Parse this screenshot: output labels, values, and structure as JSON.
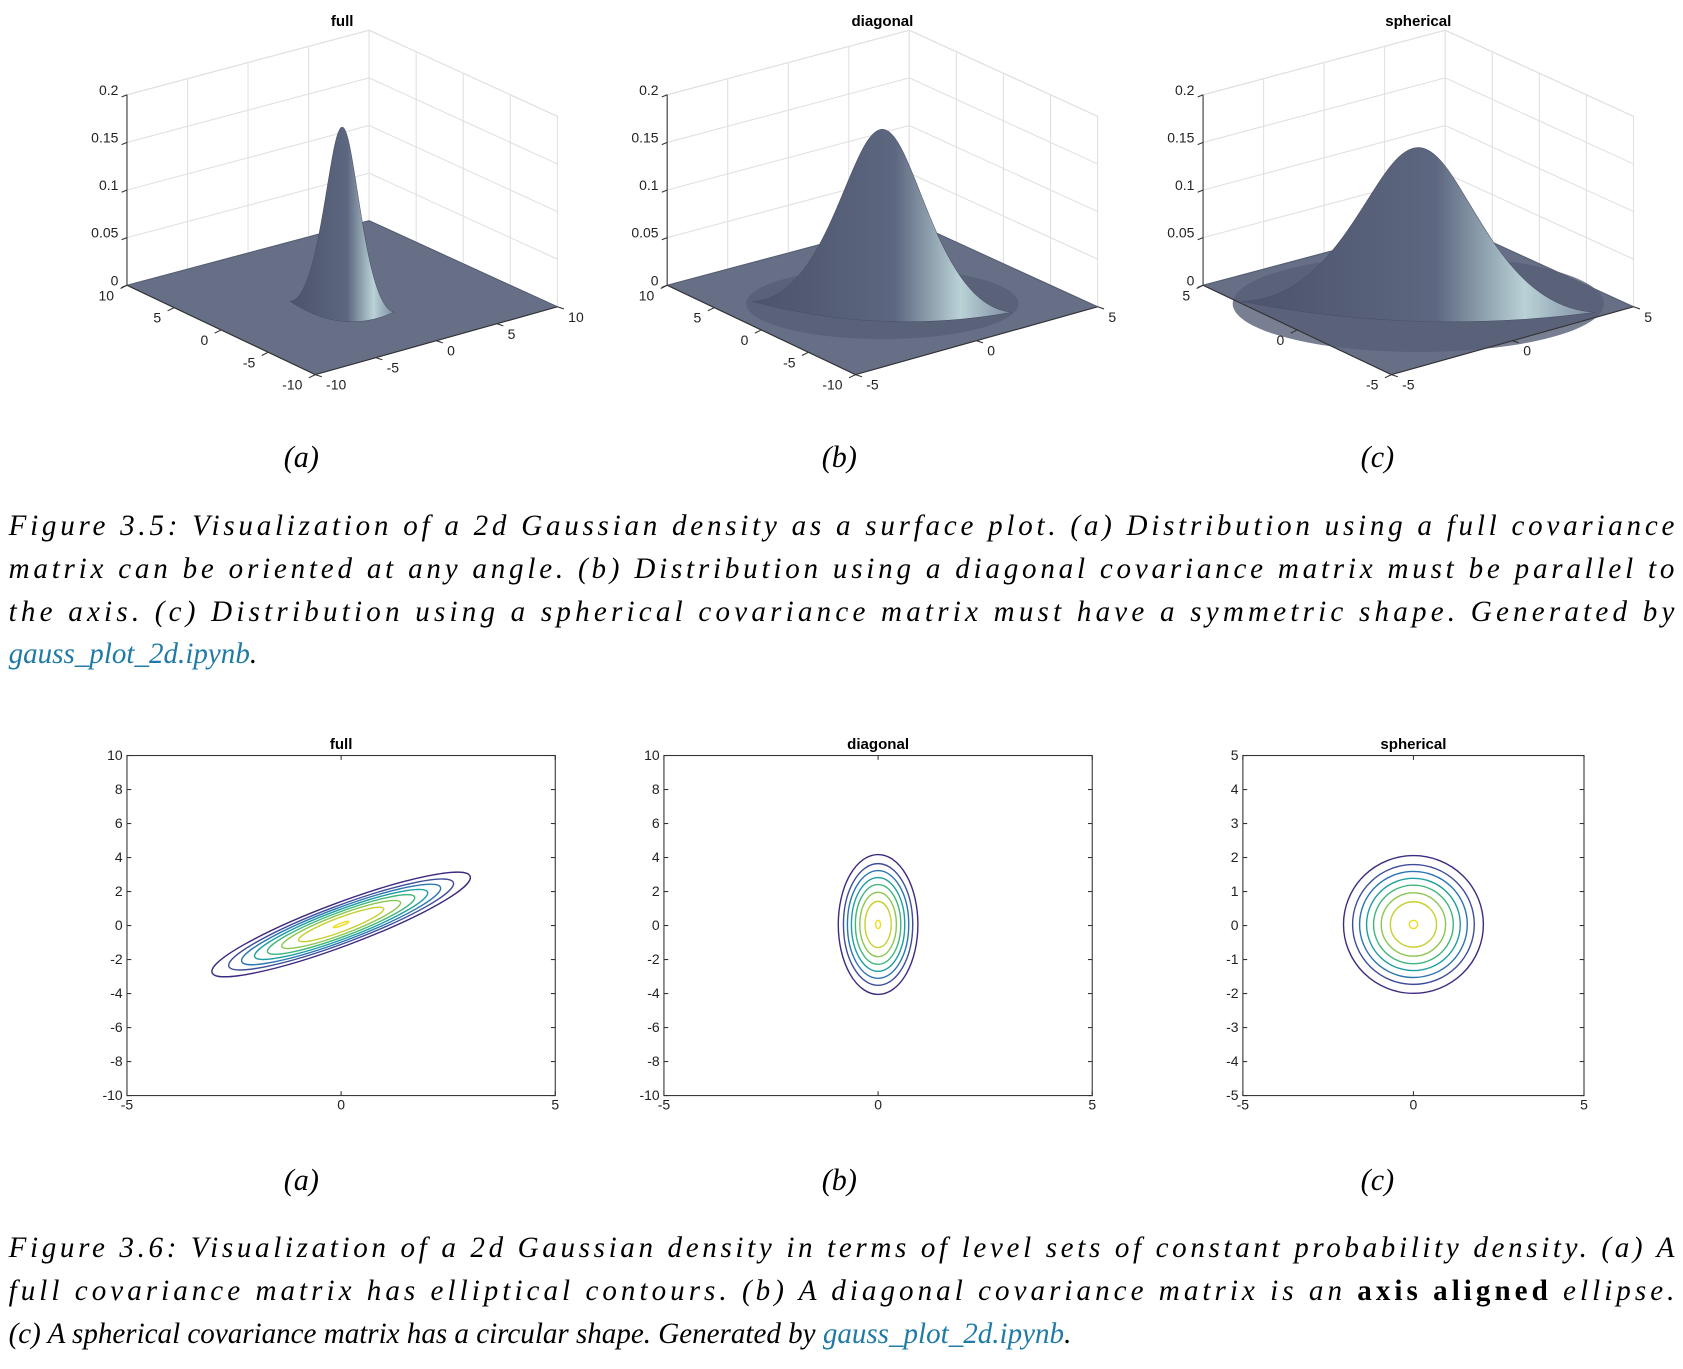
{
  "figures": [
    {
      "panels": [
        {
          "title": "full",
          "subcaption": "(a)",
          "z_ticks": [
            0,
            0.05,
            0.1,
            0.15,
            0.2
          ],
          "x_ticks": [
            10,
            5,
            0,
            -5,
            -10
          ],
          "y_ticks": [
            -10,
            -5,
            0,
            5,
            10
          ]
        },
        {
          "title": "diagonal",
          "subcaption": "(b)",
          "z_ticks": [
            0,
            0.05,
            0.1,
            0.15,
            0.2
          ],
          "x_ticks": [
            10,
            5,
            0,
            -5,
            -10
          ],
          "y_ticks": [
            -5,
            0,
            5
          ]
        },
        {
          "title": "spherical",
          "subcaption": "(c)",
          "z_ticks": [
            0,
            0.05,
            0.1,
            0.15,
            0.2
          ],
          "x_ticks": [
            5,
            0,
            -5
          ],
          "y_ticks": [
            -5,
            0,
            5
          ]
        }
      ],
      "caption": [
        [
          "Figure 3.5: Visualization of a 2d Gaussian density as a surface plot. (a) Distribution using a full covariance"
        ],
        [
          "matrix can be oriented at any angle. (b) Distribution using a diagonal covariance matrix must be parallel to"
        ],
        [
          "the axis. (c) Distribution using a spherical covariance matrix must have a symmetric shape. Generated by"
        ],
        [
          "gauss_plot_2d.ipynb",
          "."
        ]
      ]
    },
    {
      "panels": [
        {
          "title": "full",
          "subcaption": "(a)",
          "y_ticks": [
            10,
            8,
            6,
            4,
            2,
            0,
            -2,
            -4,
            -6,
            -8,
            -10
          ],
          "x_ticks": [
            -5,
            0,
            5
          ]
        },
        {
          "title": "diagonal",
          "subcaption": "(b)",
          "y_ticks": [
            10,
            8,
            6,
            4,
            2,
            0,
            -2,
            -4,
            -6,
            -8,
            -10
          ],
          "x_ticks": [
            -5,
            0,
            5
          ]
        },
        {
          "title": "spherical",
          "subcaption": "(c)",
          "y_ticks": [
            5,
            4,
            3,
            2,
            1,
            0,
            -1,
            -2,
            -3,
            -4,
            -5
          ],
          "x_ticks": [
            -5,
            0,
            5
          ]
        }
      ],
      "caption": [
        [
          "Figure 3.6: Visualization of a 2d Gaussian density in terms of level sets of constant probability density. (a) A"
        ],
        [
          "full covariance matrix has elliptical contours. (b) A diagonal covariance matrix is an ",
          "axis aligned",
          " ellipse."
        ],
        [
          "(c) A spherical covariance matrix has a circular shape. Generated by ",
          "gauss_plot_2d.ipynb",
          "."
        ]
      ]
    }
  ]
}
